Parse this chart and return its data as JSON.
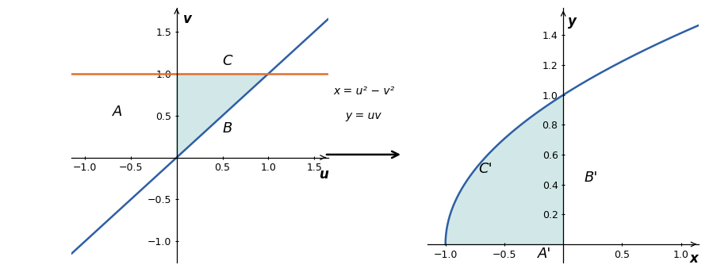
{
  "fig_width": 8.99,
  "fig_height": 3.48,
  "dpi": 100,
  "bg_color": "#ffffff",
  "fill_color": "#aed6d6",
  "fill_alpha": 0.55,
  "line_color_blue": "#2e5fa3",
  "line_color_orange": "#e07030",
  "line_width": 1.8,
  "left_xlim": [
    -1.15,
    1.65
  ],
  "left_ylim": [
    -1.25,
    1.78
  ],
  "left_xticks": [
    -1.0,
    -0.5,
    0.5,
    1.0,
    1.5
  ],
  "left_yticks": [
    -1.0,
    -0.5,
    0.5,
    1.0,
    1.5
  ],
  "left_xlabel": "u",
  "left_ylabel": "v",
  "label_A": "A",
  "label_B": "B",
  "label_C": "C",
  "right_xlim": [
    -1.15,
    1.15
  ],
  "right_ylim": [
    -0.12,
    1.58
  ],
  "right_xticks": [
    -1.0,
    -0.5,
    0.5,
    1.0
  ],
  "right_yticks": [
    0.2,
    0.4,
    0.6,
    0.8,
    1.0,
    1.2,
    1.4
  ],
  "right_xlabel": "x",
  "right_ylabel": "y",
  "label_Ap": "A'",
  "label_Bp": "B'",
  "label_Cp": "C'",
  "arrow_text_line1": "x = u² − v²",
  "arrow_text_line2": "y = uv",
  "tick_fontsize": 9,
  "label_fontsize": 12,
  "annotation_fontsize": 13
}
